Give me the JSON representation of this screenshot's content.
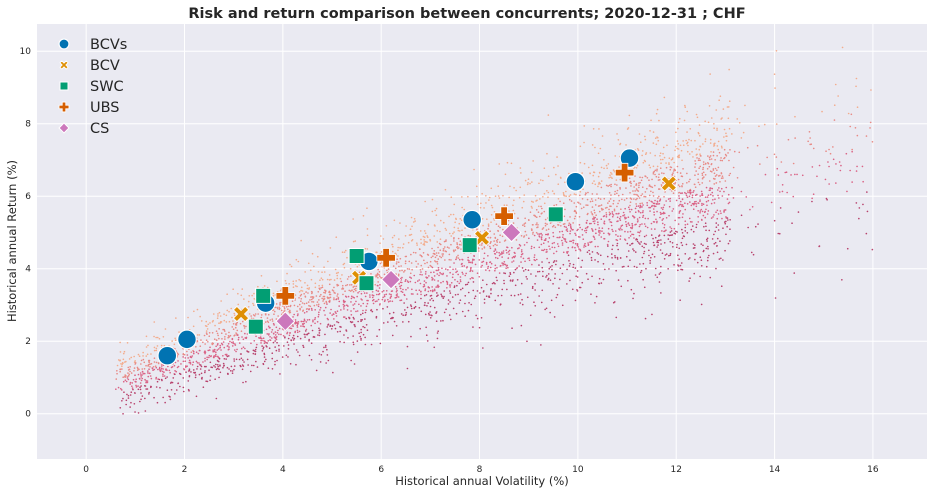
{
  "chart_data": {
    "type": "scatter",
    "title": "Risk and return comparison between concurrents; 2020-12-31 ; CHF",
    "xlabel": "Historical annual Volatility (%)",
    "ylabel": "Historical annual Return (%)",
    "xlim": [
      -1.0,
      17.1
    ],
    "ylim": [
      -1.25,
      10.75
    ],
    "xticks": [
      0,
      2,
      4,
      6,
      8,
      10,
      12,
      14,
      16
    ],
    "yticks": [
      0,
      2,
      4,
      6,
      8,
      10
    ],
    "grid": true,
    "legend_position": "upper-left",
    "background": "#eaeaf2",
    "background_cloud": {
      "description_colors": [
        "#f4a582",
        "#e8807a",
        "#d8547a",
        "#b2305e"
      ],
      "approx_points": 9000
    },
    "series": [
      {
        "name": "BCVs",
        "marker": "circle",
        "color": "#0173b2",
        "points": [
          [
            1.65,
            1.6
          ],
          [
            2.05,
            2.05
          ],
          [
            3.65,
            3.05
          ],
          [
            5.75,
            4.2
          ],
          [
            7.85,
            5.35
          ],
          [
            9.95,
            6.4
          ],
          [
            11.05,
            7.05
          ]
        ]
      },
      {
        "name": "BCV",
        "marker": "x",
        "color": "#de8f05",
        "points": [
          [
            3.15,
            2.75
          ],
          [
            5.55,
            3.75
          ],
          [
            8.05,
            4.85
          ],
          [
            11.85,
            6.35
          ]
        ]
      },
      {
        "name": "SWC",
        "marker": "square",
        "color": "#029e73",
        "points": [
          [
            3.45,
            2.4
          ],
          [
            3.6,
            3.25
          ],
          [
            5.5,
            4.35
          ],
          [
            5.7,
            3.6
          ],
          [
            7.8,
            4.65
          ],
          [
            9.55,
            5.5
          ]
        ]
      },
      {
        "name": "UBS",
        "marker": "plus",
        "color": "#d55e00",
        "points": [
          [
            4.05,
            3.25
          ],
          [
            6.1,
            4.3
          ],
          [
            8.5,
            5.45
          ],
          [
            10.95,
            6.65
          ]
        ]
      },
      {
        "name": "CS",
        "marker": "diamond",
        "color": "#cc78bc",
        "points": [
          [
            4.05,
            2.55
          ],
          [
            6.2,
            3.7
          ],
          [
            8.65,
            5.0
          ]
        ]
      }
    ]
  }
}
